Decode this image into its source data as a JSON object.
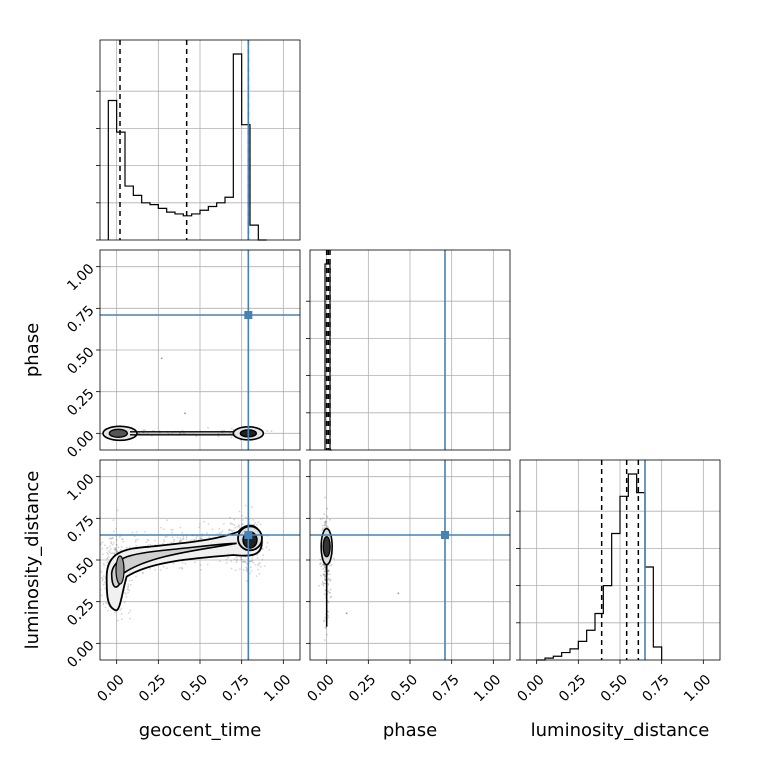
{
  "chart_data": {
    "type": "corner",
    "parameters": [
      "geocent_time",
      "phase",
      "luminosity_distance"
    ],
    "axis_range": [
      -0.1,
      1.1
    ],
    "ticks": [
      0.0,
      0.25,
      0.5,
      0.75,
      1.0
    ],
    "tick_labels": [
      "0.00",
      "0.25",
      "0.50",
      "0.75",
      "1.00"
    ],
    "grid": true,
    "truth": {
      "geocent_time": 0.79,
      "phase": 0.71,
      "luminosity_distance": 0.65,
      "color": "#4682b4"
    },
    "marginals": [
      {
        "parameter": "geocent_time",
        "quantiles": [
          0.02,
          0.42,
          0.79
        ],
        "bin_edges": [
          -0.05,
          0.0,
          0.05,
          0.1,
          0.15,
          0.2,
          0.25,
          0.3,
          0.35,
          0.4,
          0.45,
          0.5,
          0.55,
          0.6,
          0.65,
          0.7,
          0.75,
          0.8,
          0.85,
          0.9
        ],
        "heights": [
          0.75,
          0.58,
          0.29,
          0.24,
          0.2,
          0.19,
          0.17,
          0.15,
          0.14,
          0.13,
          0.14,
          0.16,
          0.18,
          0.2,
          0.23,
          1.0,
          0.62,
          0.08,
          0.0
        ]
      },
      {
        "parameter": "phase",
        "quantiles": [
          0.0,
          0.01,
          0.02
        ],
        "bin_edges": [
          -0.01,
          0.0,
          0.01,
          0.02,
          0.03
        ],
        "heights": [
          1.0,
          1.0,
          1.0,
          0.0
        ]
      },
      {
        "parameter": "luminosity_distance",
        "quantiles": [
          0.39,
          0.54,
          0.61
        ],
        "bin_edges": [
          0.0,
          0.05,
          0.1,
          0.15,
          0.2,
          0.25,
          0.3,
          0.35,
          0.4,
          0.45,
          0.5,
          0.55,
          0.6,
          0.65,
          0.7,
          0.75
        ],
        "heights": [
          0.0,
          0.01,
          0.02,
          0.04,
          0.06,
          0.1,
          0.16,
          0.25,
          0.4,
          0.68,
          0.88,
          1.0,
          0.9,
          0.5,
          0.07
        ]
      }
    ],
    "joint_panels": [
      {
        "x": "geocent_time",
        "y": "phase"
      },
      {
        "x": "geocent_time",
        "y": "luminosity_distance"
      },
      {
        "x": "phase",
        "y": "luminosity_distance"
      }
    ]
  }
}
